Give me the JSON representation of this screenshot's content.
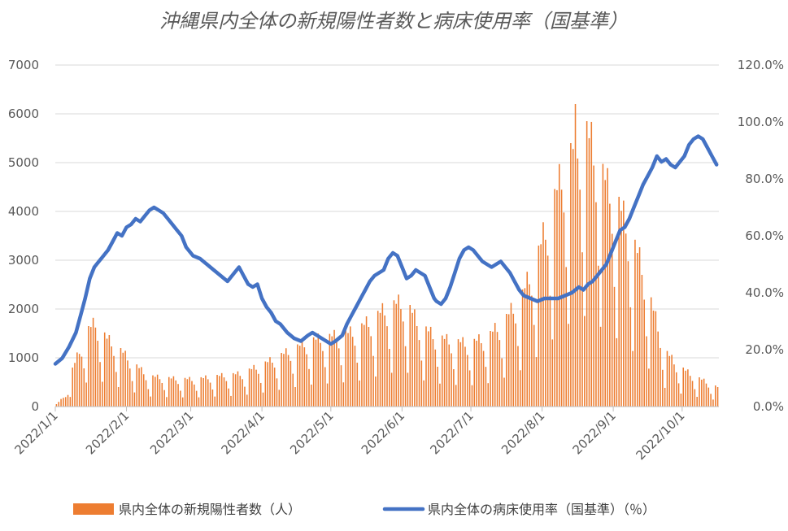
{
  "chart_data": {
    "type": "bar+line",
    "title": "沖縄県内全体の新規陽性者数と病床使用率（国基準）",
    "x_ticks": [
      "2022/1/1",
      "2022/2/1",
      "2022/3/1",
      "2022/4/1",
      "2022/5/1",
      "2022/6/1",
      "2022/7/1",
      "2022/8/1",
      "2022/9/1",
      "2022/10/1"
    ],
    "y_left": {
      "range": [
        0,
        7000
      ],
      "step": 1000,
      "ticks": [
        "0",
        "1000",
        "2000",
        "3000",
        "4000",
        "5000",
        "6000",
        "7000"
      ]
    },
    "y_right": {
      "range": [
        0,
        120
      ],
      "step": 20,
      "ticks": [
        "0.0%",
        "20.0%",
        "40.0%",
        "60.0%",
        "80.0%",
        "100.0%",
        "120.0%"
      ]
    },
    "days": 289,
    "grid": "horizontal",
    "legend_position": "bottom",
    "series": [
      {
        "name": "県内全体の新規陽性者数（人）",
        "kind": "bar",
        "axis": "left",
        "color": "#ED7D31",
        "anchors": [
          [
            0,
            50
          ],
          [
            4,
            250
          ],
          [
            7,
            800
          ],
          [
            10,
            1200
          ],
          [
            14,
            1650
          ],
          [
            17,
            1800
          ],
          [
            22,
            1450
          ],
          [
            27,
            1250
          ],
          [
            33,
            950
          ],
          [
            40,
            650
          ],
          [
            50,
            600
          ],
          [
            60,
            580
          ],
          [
            70,
            650
          ],
          [
            80,
            700
          ],
          [
            90,
            900
          ],
          [
            100,
            1150
          ],
          [
            110,
            1400
          ],
          [
            120,
            1500
          ],
          [
            130,
            1600
          ],
          [
            137,
            1850
          ],
          [
            145,
            2150
          ],
          [
            152,
            2250
          ],
          [
            158,
            1750
          ],
          [
            165,
            1500
          ],
          [
            172,
            1400
          ],
          [
            180,
            1350
          ],
          [
            188,
            1500
          ],
          [
            196,
            1900
          ],
          [
            203,
            2400
          ],
          [
            210,
            3300
          ],
          [
            216,
            4300
          ],
          [
            221,
            5100
          ],
          [
            226,
            5600
          ],
          [
            231,
            5850
          ],
          [
            236,
            5250
          ],
          [
            240,
            4700
          ],
          [
            245,
            4300
          ],
          [
            250,
            3700
          ],
          [
            255,
            3000
          ],
          [
            260,
            2050
          ],
          [
            265,
            1200
          ],
          [
            270,
            900
          ],
          [
            276,
            700
          ],
          [
            282,
            550
          ],
          [
            286,
            450
          ],
          [
            289,
            400
          ]
        ],
        "weekly_multipliers": [
          1.0,
          0.96,
          1.04,
          0.9,
          0.78,
          0.55,
          0.32
        ],
        "peak_label": {
          "day": 226,
          "value": 6200
        }
      },
      {
        "name": "県内全体の病床使用率（国基準）（％）",
        "kind": "line",
        "axis": "right",
        "color": "#4472C4",
        "points": [
          [
            0,
            15
          ],
          [
            3,
            17
          ],
          [
            6,
            21
          ],
          [
            9,
            26
          ],
          [
            11,
            32
          ],
          [
            13,
            38
          ],
          [
            15,
            45
          ],
          [
            17,
            49
          ],
          [
            19,
            51
          ],
          [
            21,
            53
          ],
          [
            23,
            55
          ],
          [
            25,
            58
          ],
          [
            27,
            61
          ],
          [
            29,
            60
          ],
          [
            31,
            63
          ],
          [
            33,
            64
          ],
          [
            35,
            66
          ],
          [
            37,
            65
          ],
          [
            39,
            67
          ],
          [
            41,
            69
          ],
          [
            43,
            70
          ],
          [
            45,
            69
          ],
          [
            47,
            68
          ],
          [
            49,
            66
          ],
          [
            51,
            64
          ],
          [
            53,
            62
          ],
          [
            55,
            60
          ],
          [
            57,
            56
          ],
          [
            60,
            53
          ],
          [
            63,
            52
          ],
          [
            66,
            50
          ],
          [
            69,
            48
          ],
          [
            72,
            46
          ],
          [
            75,
            44
          ],
          [
            78,
            47
          ],
          [
            80,
            49
          ],
          [
            82,
            46
          ],
          [
            84,
            43
          ],
          [
            86,
            42
          ],
          [
            88,
            43
          ],
          [
            90,
            38
          ],
          [
            92,
            35
          ],
          [
            94,
            33
          ],
          [
            96,
            30
          ],
          [
            98,
            29
          ],
          [
            101,
            26
          ],
          [
            104,
            24
          ],
          [
            107,
            23
          ],
          [
            110,
            25
          ],
          [
            112,
            26
          ],
          [
            114,
            25
          ],
          [
            116,
            24
          ],
          [
            118,
            23
          ],
          [
            120,
            22
          ],
          [
            122,
            23
          ],
          [
            125,
            25
          ],
          [
            127,
            29
          ],
          [
            129,
            32
          ],
          [
            131,
            35
          ],
          [
            133,
            38
          ],
          [
            135,
            41
          ],
          [
            137,
            44
          ],
          [
            139,
            46
          ],
          [
            141,
            47
          ],
          [
            143,
            48
          ],
          [
            145,
            52
          ],
          [
            147,
            54
          ],
          [
            149,
            53
          ],
          [
            151,
            49
          ],
          [
            153,
            45
          ],
          [
            155,
            46
          ],
          [
            157,
            48
          ],
          [
            159,
            47
          ],
          [
            161,
            46
          ],
          [
            163,
            42
          ],
          [
            165,
            38
          ],
          [
            166,
            37
          ],
          [
            168,
            36
          ],
          [
            170,
            38
          ],
          [
            172,
            42
          ],
          [
            174,
            47
          ],
          [
            176,
            52
          ],
          [
            178,
            55
          ],
          [
            180,
            56
          ],
          [
            182,
            55
          ],
          [
            184,
            53
          ],
          [
            186,
            51
          ],
          [
            188,
            50
          ],
          [
            190,
            49
          ],
          [
            192,
            50
          ],
          [
            194,
            51
          ],
          [
            196,
            49
          ],
          [
            198,
            47
          ],
          [
            200,
            44
          ],
          [
            202,
            41
          ],
          [
            204,
            39
          ],
          [
            207,
            38
          ],
          [
            210,
            37
          ],
          [
            213,
            38
          ],
          [
            216,
            38
          ],
          [
            219,
            38
          ],
          [
            222,
            39
          ],
          [
            225,
            40
          ],
          [
            228,
            42
          ],
          [
            230,
            41
          ],
          [
            232,
            43
          ],
          [
            234,
            44
          ],
          [
            236,
            46
          ],
          [
            238,
            48
          ],
          [
            240,
            50
          ],
          [
            242,
            54
          ],
          [
            244,
            58
          ],
          [
            246,
            62
          ],
          [
            248,
            63
          ],
          [
            250,
            66
          ],
          [
            252,
            70
          ],
          [
            254,
            74
          ],
          [
            256,
            78
          ],
          [
            258,
            81
          ],
          [
            260,
            84
          ],
          [
            262,
            88
          ],
          [
            264,
            86
          ],
          [
            266,
            87
          ],
          [
            268,
            85
          ],
          [
            270,
            84
          ],
          [
            272,
            86
          ],
          [
            274,
            88
          ],
          [
            276,
            92
          ],
          [
            278,
            94
          ],
          [
            280,
            95
          ],
          [
            282,
            94
          ],
          [
            284,
            91
          ],
          [
            286,
            88
          ],
          [
            288,
            85
          ]
        ]
      }
    ],
    "legend": [
      {
        "label": "県内全体の新規陽性者数（人）",
        "color": "#ED7D31",
        "kind": "bar"
      },
      {
        "label": "県内全体の病床使用率（国基準）（％）",
        "color": "#4472C4",
        "kind": "line"
      }
    ]
  }
}
